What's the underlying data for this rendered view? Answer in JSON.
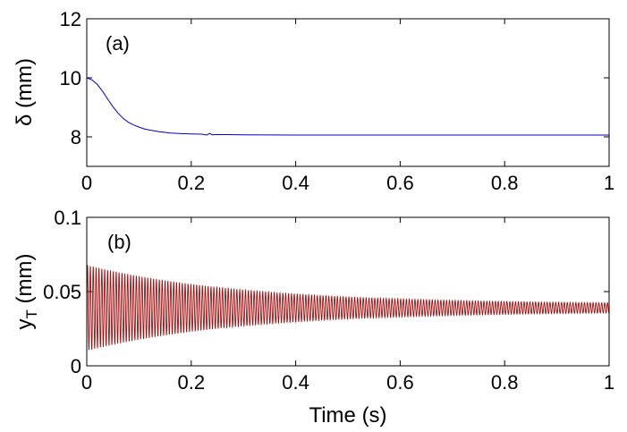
{
  "chart_data": [
    {
      "type": "line",
      "panel_label": "(a)",
      "xlabel": "",
      "ylabel": "δ (mm)",
      "xlim": [
        0,
        1
      ],
      "ylim": [
        7,
        12
      ],
      "xticks": [
        "0",
        "0.2",
        "0.4",
        "0.6",
        "0.8",
        "1"
      ],
      "yticks": [
        "8",
        "10",
        "12"
      ],
      "grid": false,
      "series": [
        {
          "color": "#0000cc",
          "x": [
            0,
            0.01,
            0.02,
            0.03,
            0.04,
            0.05,
            0.06,
            0.07,
            0.08,
            0.09,
            0.1,
            0.11,
            0.12,
            0.13,
            0.14,
            0.15,
            0.16,
            0.17,
            0.18,
            0.2,
            0.22,
            0.23,
            0.235,
            0.24,
            0.25,
            0.3,
            0.4,
            0.6,
            0.8,
            1.0
          ],
          "y": [
            10.0,
            9.93,
            9.78,
            9.55,
            9.28,
            9.02,
            8.8,
            8.62,
            8.49,
            8.4,
            8.33,
            8.27,
            8.23,
            8.2,
            8.17,
            8.15,
            8.13,
            8.12,
            8.11,
            8.1,
            8.09,
            8.06,
            8.12,
            8.07,
            8.08,
            8.07,
            8.06,
            8.06,
            8.06,
            8.06
          ]
        }
      ]
    },
    {
      "type": "line",
      "panel_label": "(b)",
      "xlabel": "Time (s)",
      "ylabel": "yT (mm)",
      "ylabel_main": "y",
      "ylabel_sub": "T",
      "ylabel_unit": " (mm)",
      "xlim": [
        0,
        1
      ],
      "ylim": [
        0,
        0.1
      ],
      "xticks": [
        "0",
        "0.2",
        "0.4",
        "0.6",
        "0.8",
        "1"
      ],
      "yticks": [
        "0",
        "0.05",
        "0.1"
      ],
      "grid": false,
      "series": [
        {
          "color": "#a01010",
          "signal": "damped oscillation",
          "mean": 0.039,
          "start_value": 0.0,
          "initial_amplitude": 0.029,
          "final_amplitude": 0.0025,
          "decay_time_s": 0.3,
          "period_s": 0.0055,
          "x_start": 0,
          "x_end": 1
        }
      ]
    }
  ]
}
